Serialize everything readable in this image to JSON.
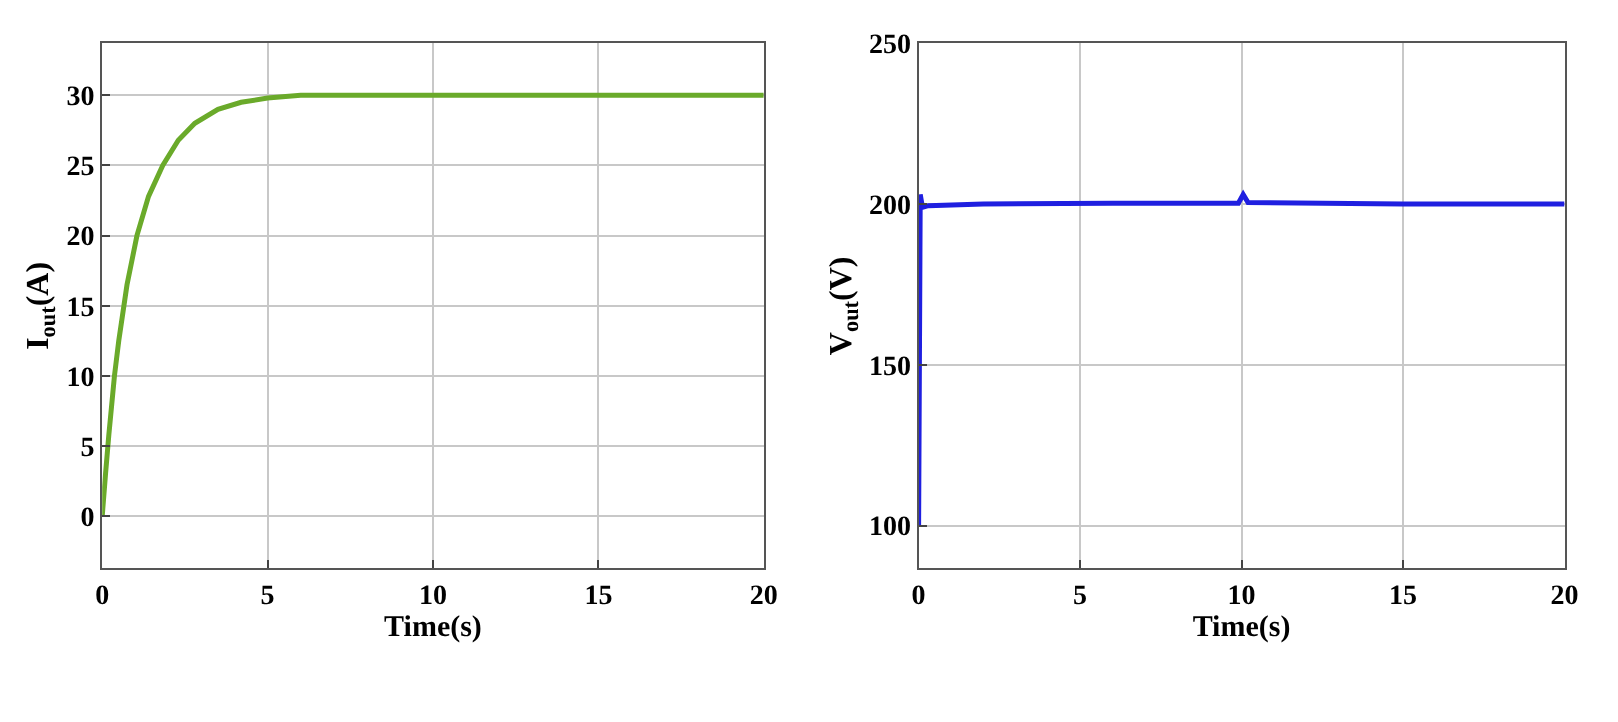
{
  "chart_data": [
    {
      "type": "line",
      "xlabel": "Time(s)",
      "ylabel": "I$_{out}$(A)",
      "xlim": [
        0,
        20
      ],
      "xticks": [
        0,
        5,
        10,
        15,
        20
      ],
      "ylim": [
        -3.7,
        33.7
      ],
      "yticks": [
        0,
        5,
        10,
        15,
        20,
        25,
        30
      ],
      "grid": true,
      "marker": "none",
      "line_style": "solid",
      "series": [
        {
          "color": "#6aaa2a",
          "x": [
            0,
            0.1,
            0.2,
            0.37,
            0.5,
            0.75,
            1.05,
            1.4,
            1.83,
            2.3,
            2.8,
            3.5,
            4.2,
            5,
            6,
            7,
            8,
            10,
            12,
            15,
            20
          ],
          "values": [
            0,
            3,
            5.8,
            10,
            12.5,
            16.5,
            20,
            22.8,
            25,
            26.8,
            28,
            29,
            29.5,
            29.8,
            30,
            30,
            30,
            30,
            30,
            30,
            30
          ]
        }
      ]
    },
    {
      "type": "line",
      "xlabel": "Time(s)",
      "ylabel": "V$_{out}$(V)",
      "xlim": [
        0,
        20
      ],
      "xticks": [
        0,
        5,
        10,
        15,
        20
      ],
      "ylim": [
        86.7,
        250
      ],
      "yticks": [
        100,
        150,
        200,
        250
      ],
      "grid": true,
      "marker": "none",
      "line_style": "solid",
      "series": [
        {
          "color": "#1f1fe0",
          "x": [
            0,
            0.05,
            0.12,
            0.3,
            2,
            6,
            9.9,
            10.05,
            10.2,
            15,
            20
          ],
          "values": [
            100,
            203,
            199,
            199.5,
            200,
            200.3,
            200.3,
            203,
            200.5,
            200,
            200
          ]
        }
      ]
    }
  ]
}
